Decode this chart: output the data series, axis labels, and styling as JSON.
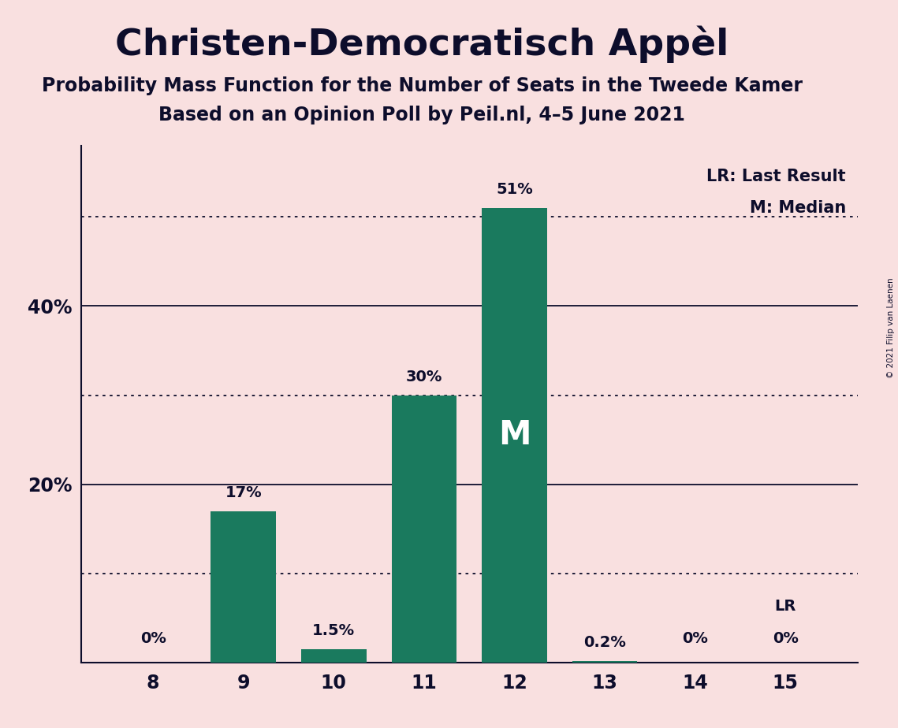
{
  "title": "Christen-Democratisch Appèl",
  "subtitle1": "Probability Mass Function for the Number of Seats in the Tweede Kamer",
  "subtitle2": "Based on an Opinion Poll by Peil.nl, 4–5 June 2021",
  "copyright": "© 2021 Filip van Laenen",
  "categories": [
    8,
    9,
    10,
    11,
    12,
    13,
    14,
    15
  ],
  "values": [
    0,
    17,
    1.5,
    30,
    51,
    0.2,
    0,
    0
  ],
  "bar_color": "#1a7a5e",
  "background_color": "#f9e0e0",
  "text_color": "#0d0d2b",
  "median_bar": 12,
  "median_label": "M",
  "lr_bar": 15,
  "bar_labels": [
    "0%",
    "17%",
    "1.5%",
    "30%",
    "51%",
    "0.2%",
    "0%",
    "0%"
  ],
  "solid_lines": [
    20,
    40
  ],
  "dotted_lines": [
    10,
    30,
    50
  ],
  "ytick_labels_show": [
    "20%",
    "40%"
  ],
  "ytick_vals_show": [
    20,
    40
  ],
  "legend_lr": "LR: Last Result",
  "legend_m": "M: Median",
  "ylim": [
    0,
    58
  ],
  "bar_width": 0.72
}
